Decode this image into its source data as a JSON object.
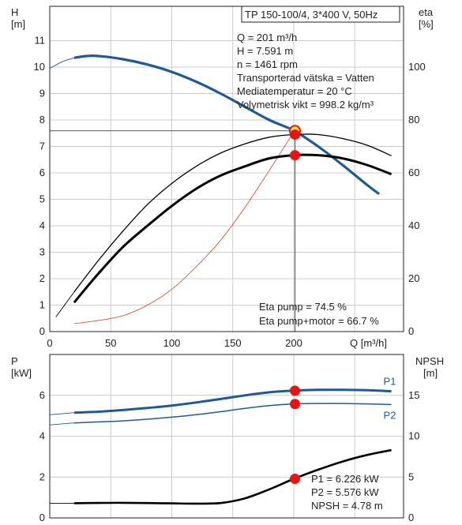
{
  "header": {
    "model": "TP 150-100/4, 3*400 V, 50Hz"
  },
  "operating_point_info": [
    "Q = 201 m³/h",
    "H = 7.591 m",
    "n = 1461 rpm",
    "Transporterad vätska = Vatten",
    "Mediatemperatur = 20 °C",
    "Volymetrisk vikt = 998.2 kg/m³"
  ],
  "efficiency_info": [
    "Eta pump = 74.5 %",
    "Eta pump+motor = 66.7 %"
  ],
  "power_info": [
    "P1 = 6.226 kW",
    "P2 = 5.576 kW",
    "NPSH = 4.78 m"
  ],
  "colors": {
    "head_curve": "#1f5a96",
    "power_curve": "#1f5a96",
    "efficiency_curve": "#000000",
    "system_curve": "#e23a2a",
    "marker": "#ee1111",
    "op_marker_fill": "#ffee33",
    "grid": "#cccccc"
  },
  "chart_data": [
    {
      "type": "line",
      "title": "",
      "xlabel": "Q [m³/h]",
      "ylabel": "H [m]",
      "y2label": "eta [%]",
      "xlim": [
        0,
        290
      ],
      "ylim": [
        0,
        12.3
      ],
      "y2lim": [
        0,
        123
      ],
      "x_ticks": [
        0,
        50,
        100,
        150,
        200
      ],
      "y_ticks": [
        0,
        1,
        2,
        3,
        4,
        5,
        6,
        7,
        8,
        9,
        10,
        11
      ],
      "y2_ticks": [
        0,
        20,
        40,
        60,
        80,
        100
      ],
      "grid": true,
      "series": [
        {
          "name": "",
          "role": "head",
          "x": [
            0,
            10,
            20,
            30,
            40,
            60,
            80,
            100,
            120,
            140,
            160,
            180,
            200,
            220,
            240,
            260,
            270
          ],
          "y": [
            9.95,
            10.2,
            10.35,
            10.42,
            10.42,
            10.3,
            10.1,
            9.82,
            9.45,
            9.0,
            8.5,
            8.0,
            7.6,
            7.0,
            6.3,
            5.55,
            5.2
          ],
          "thin_until_x": 20
        },
        {
          "name": "",
          "role": "system",
          "x": [
            20,
            40,
            60,
            80,
            100,
            120,
            140,
            160,
            180,
            200
          ],
          "y": [
            0.3,
            0.42,
            0.6,
            1.0,
            1.6,
            2.45,
            3.45,
            4.7,
            6.1,
            7.55
          ]
        },
        {
          "name": "Eta pump",
          "role": "eta",
          "axis": "right",
          "x": [
            5,
            20,
            40,
            60,
            80,
            100,
            120,
            140,
            160,
            180,
            200,
            220,
            240,
            260,
            280
          ],
          "y": [
            5.5,
            15,
            27,
            38,
            48,
            56,
            62.5,
            67.5,
            71,
            73.5,
            74.5,
            74.5,
            73,
            70.5,
            66.5
          ],
          "thin_until_x": 20
        },
        {
          "name": "Eta pump+motor",
          "role": "eta_total",
          "axis": "right",
          "x": [
            20,
            40,
            60,
            80,
            100,
            120,
            140,
            160,
            180,
            200,
            220,
            240,
            260,
            280
          ],
          "y": [
            11,
            22,
            32,
            40,
            47.5,
            54,
            59,
            62.5,
            65.5,
            66.7,
            66.7,
            65.5,
            63,
            59.5
          ]
        }
      ],
      "markers": [
        {
          "x": 201,
          "y": 7.591,
          "axis": "left",
          "style": "operating-point"
        },
        {
          "x": 201,
          "y": 74.5,
          "axis": "right",
          "style": "dot"
        },
        {
          "x": 201,
          "y": 66.7,
          "axis": "right",
          "style": "dot"
        }
      ]
    },
    {
      "type": "line",
      "title": "",
      "xlabel": "",
      "ylabel": "P [kW]",
      "y2label": "NPSH [m]",
      "xlim": [
        0,
        290
      ],
      "ylim": [
        0,
        8
      ],
      "y2lim": [
        0,
        20
      ],
      "y_ticks": [
        0,
        2,
        4,
        6
      ],
      "y2_ticks": [
        0,
        5,
        10,
        15
      ],
      "grid": true,
      "series": [
        {
          "name": "P1",
          "role": "p1",
          "x": [
            0,
            20,
            40,
            60,
            80,
            100,
            120,
            140,
            160,
            180,
            200,
            220,
            240,
            260,
            280
          ],
          "y": [
            5.05,
            5.15,
            5.2,
            5.28,
            5.38,
            5.5,
            5.65,
            5.82,
            6.0,
            6.15,
            6.23,
            6.27,
            6.27,
            6.25,
            6.2
          ],
          "thin_until_x": 20
        },
        {
          "name": "P2",
          "role": "p2",
          "x": [
            0,
            20,
            40,
            60,
            80,
            100,
            120,
            140,
            160,
            180,
            200,
            220,
            240,
            260,
            280
          ],
          "y": [
            4.55,
            4.65,
            4.7,
            4.75,
            4.83,
            4.93,
            5.05,
            5.2,
            5.36,
            5.5,
            5.58,
            5.6,
            5.6,
            5.58,
            5.55
          ],
          "thin_until_x": 20
        },
        {
          "name": "NPSH",
          "role": "npsh",
          "axis": "right",
          "x": [
            0,
            20,
            40,
            60,
            80,
            100,
            120,
            140,
            160,
            180,
            200,
            220,
            240,
            260,
            280
          ],
          "y": [
            1.8,
            1.8,
            1.83,
            1.85,
            1.82,
            1.78,
            1.75,
            1.82,
            2.4,
            3.5,
            4.78,
            5.9,
            6.9,
            7.7,
            8.3
          ],
          "thin_until_x": 20
        }
      ],
      "markers": [
        {
          "x": 201,
          "y": 6.226,
          "axis": "left",
          "style": "dot"
        },
        {
          "x": 201,
          "y": 5.576,
          "axis": "left",
          "style": "dot"
        },
        {
          "x": 201,
          "y": 4.78,
          "axis": "right",
          "style": "dot"
        }
      ]
    }
  ]
}
